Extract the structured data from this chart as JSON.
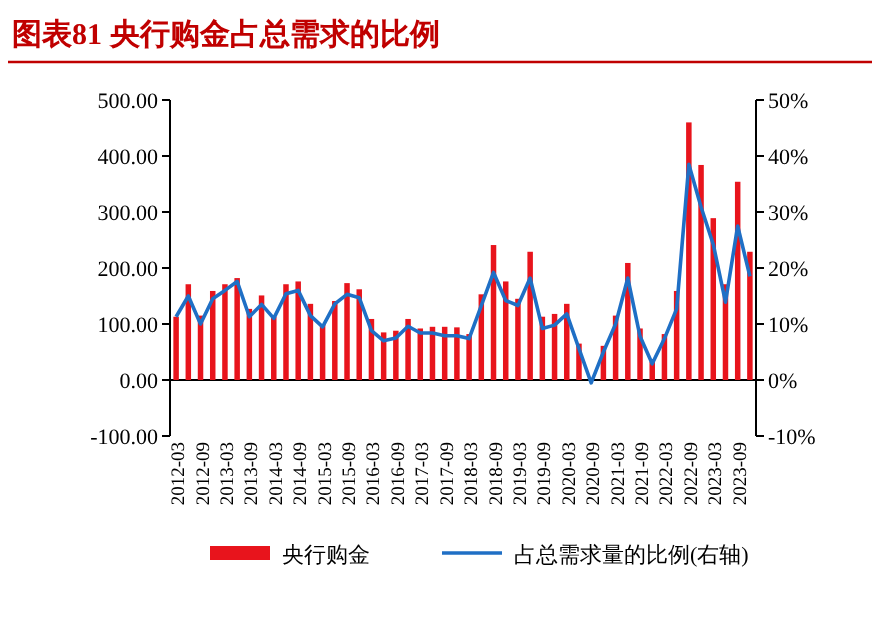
{
  "chart_data": {
    "type": "bar",
    "title": "图表81  央行购金占总需求的比例",
    "categories": [
      "2012-03",
      null,
      "2012-09",
      null,
      "2013-03",
      null,
      "2013-09",
      null,
      "2014-03",
      null,
      "2014-09",
      null,
      "2015-03",
      null,
      "2015-09",
      null,
      "2016-03",
      null,
      "2016-09",
      null,
      "2017-03",
      null,
      "2017-09",
      null,
      "2018-03",
      null,
      "2018-09",
      null,
      "2019-03",
      null,
      "2019-09",
      null,
      "2020-03",
      null,
      "2020-09",
      null,
      "2021-03",
      null,
      "2021-09",
      null,
      "2022-03",
      null,
      "2022-09",
      null,
      "2023-03",
      null,
      "2023-09",
      null
    ],
    "series": [
      {
        "name": "央行购金",
        "color": "#e8141c",
        "values": [
          113,
          171,
          115,
          159,
          171,
          182,
          127,
          151,
          113,
          171,
          176,
          136,
          100,
          141,
          173,
          162,
          109,
          85,
          88,
          109,
          92,
          95,
          95,
          94,
          82,
          153,
          241,
          176,
          145,
          229,
          113,
          118,
          136,
          65,
          0,
          61,
          115,
          209,
          92,
          33,
          82,
          159,
          460,
          384,
          289,
          171,
          354,
          229
        ]
      },
      {
        "name": "占总需求量的比例(右轴)",
        "type": "line",
        "axis": "y2",
        "color": "#1f6fc5",
        "values": [
          11.3,
          15,
          10,
          14.5,
          16,
          17.6,
          11.3,
          13.5,
          11,
          15.4,
          16,
          11.5,
          9.5,
          13.6,
          15.3,
          14.7,
          8.8,
          7,
          7.5,
          9.6,
          8.4,
          8.4,
          7.9,
          7.9,
          7.4,
          13.3,
          19.2,
          14.2,
          13.3,
          18.2,
          9.2,
          9.8,
          11.8,
          5.6,
          -0.5,
          5,
          10,
          18.2,
          7.8,
          2.9,
          7.4,
          12.7,
          38.5,
          30.9,
          24.2,
          13.9,
          27.5,
          18.5
        ]
      }
    ],
    "ylim": [
      -100,
      500
    ],
    "yticks": [
      {
        "value": -100,
        "label": "-100.00"
      },
      {
        "value": 0,
        "label": "0.00"
      },
      {
        "value": 100,
        "label": "100.00"
      },
      {
        "value": 200,
        "label": "200.00"
      },
      {
        "value": 300,
        "label": "300.00"
      },
      {
        "value": 400,
        "label": "400.00"
      },
      {
        "value": 500,
        "label": "500.00"
      }
    ],
    "y2lim": [
      -10,
      50
    ],
    "y2ticks": [
      {
        "value": -10,
        "label": "-10%"
      },
      {
        "value": 0,
        "label": "0%"
      },
      {
        "value": 10,
        "label": "10%"
      },
      {
        "value": 20,
        "label": "20%"
      },
      {
        "value": 30,
        "label": "30%"
      },
      {
        "value": 40,
        "label": "40%"
      },
      {
        "value": 50,
        "label": "50%"
      }
    ],
    "legend": "bottom"
  }
}
